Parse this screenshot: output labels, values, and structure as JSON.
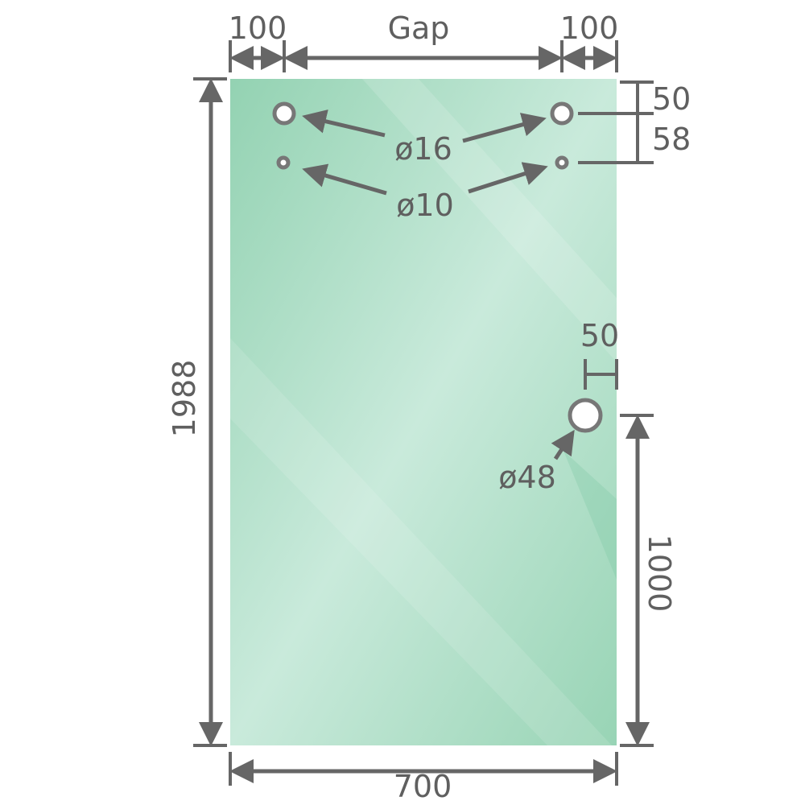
{
  "colors": {
    "glass": "#9dd6b8",
    "glass_highlight": "#c9eadb",
    "line": "#666666"
  },
  "dimensions": {
    "top_left_offset": "100",
    "gap": "Gap",
    "top_right_offset": "100",
    "height": "1988",
    "width": "700",
    "hole_top_offset": "50",
    "hole_spacing": "58",
    "handle_edge_offset": "50",
    "handle_height": "1000"
  },
  "holes": {
    "large_top": "ø16",
    "small_top": "ø10",
    "handle": "ø48"
  }
}
